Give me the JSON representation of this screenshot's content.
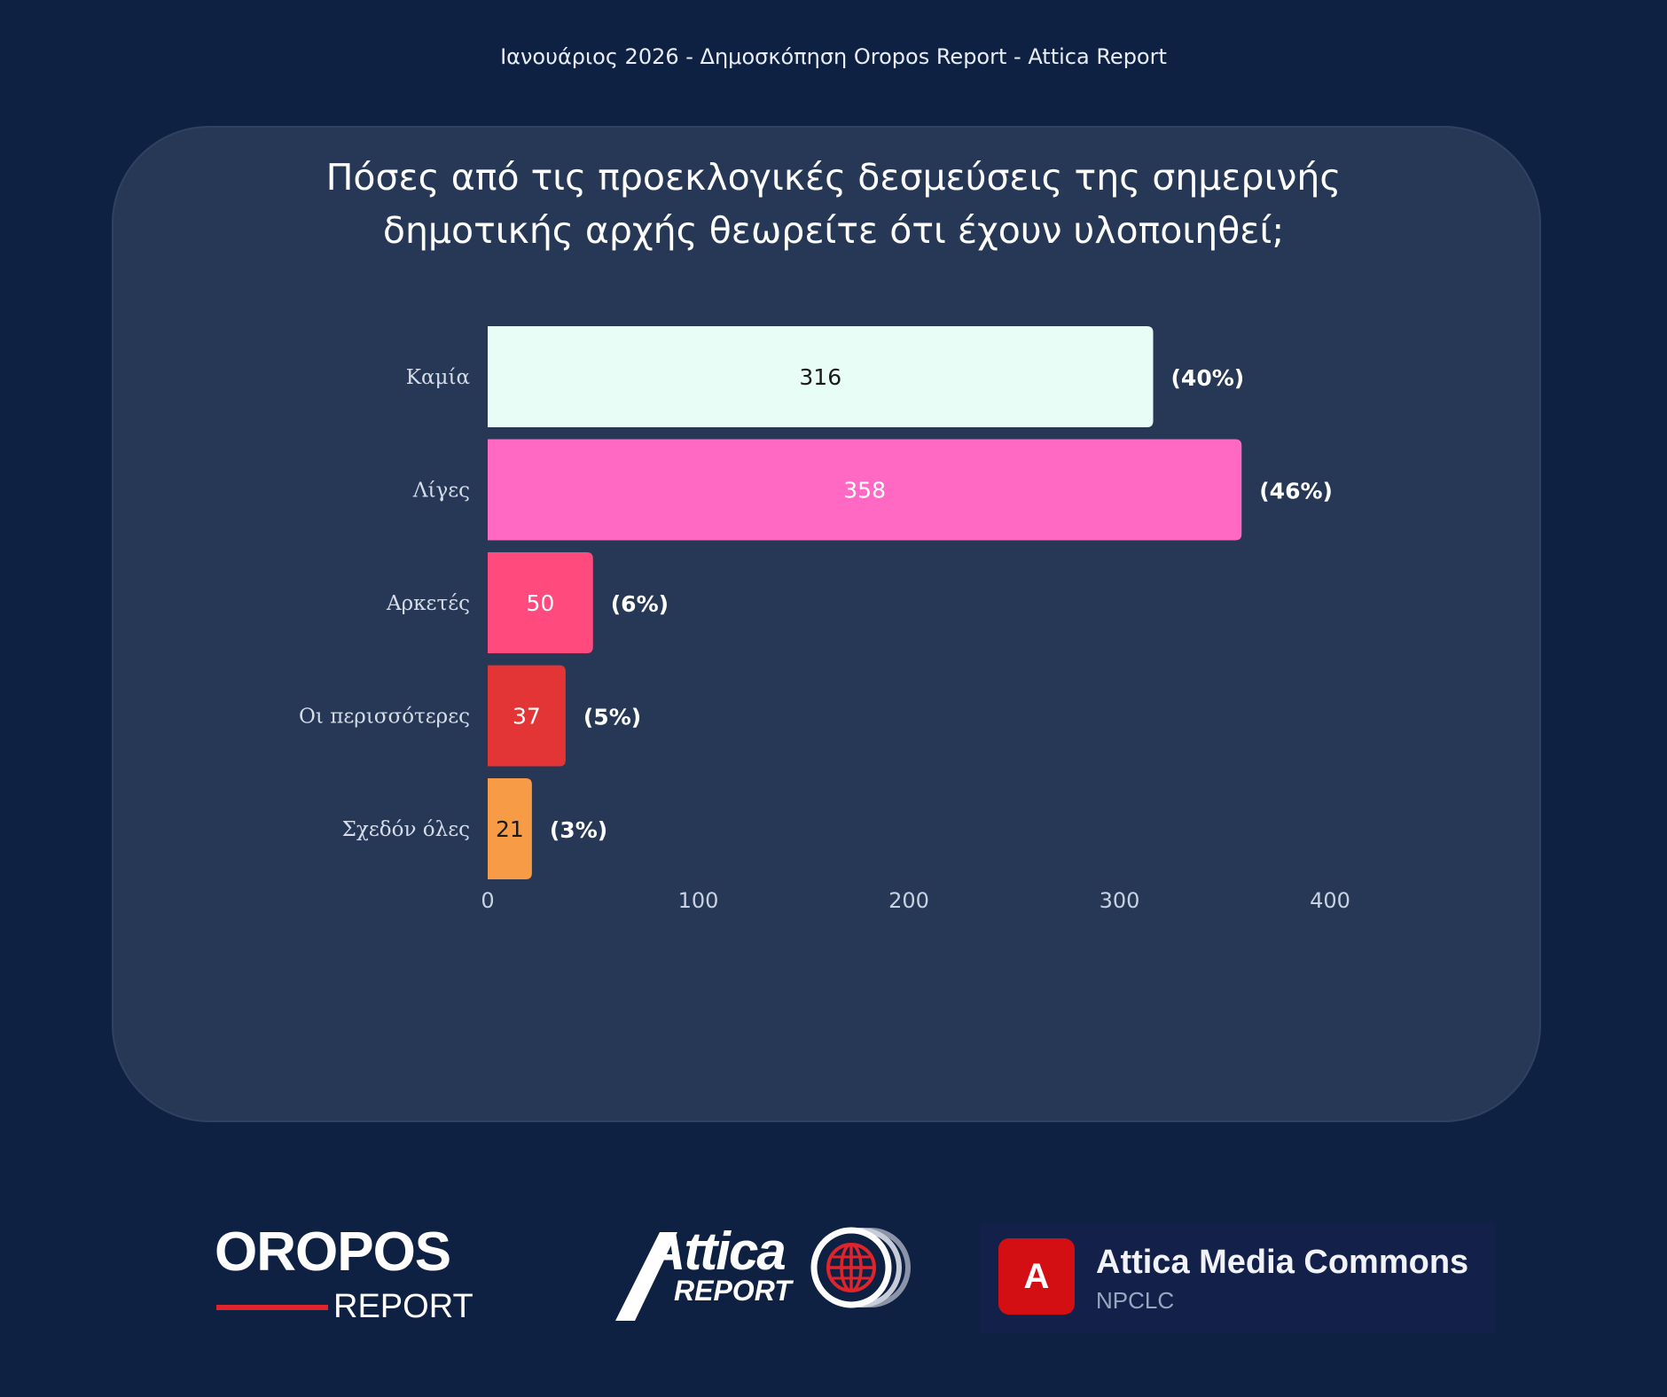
{
  "header": {
    "title": "Ιανουάριος 2026 - Δημοσκόπηση Oropos Report - Attica Report"
  },
  "question": {
    "line1": "Πόσες από τις προεκλογικές δεσμεύσεις της σημερινής",
    "line2": "δημοτικής αρχής θεωρείτε ότι έχουν υλοποιηθεί;"
  },
  "chart_data": {
    "type": "bar",
    "orientation": "horizontal",
    "categories": [
      "Καμία",
      "Λίγες",
      "Αρκετές",
      "Οι περισσότερες",
      "Σχεδόν όλες"
    ],
    "values": [
      316,
      358,
      50,
      37,
      21
    ],
    "percent_labels": [
      "(40%)",
      "(46%)",
      "(6%)",
      "(5%)",
      "(3%)"
    ],
    "colors": [
      "#e8fdf5",
      "#ff69c4",
      "#ff4a7d",
      "#e33535",
      "#f79b47"
    ],
    "value_label_colors": [
      "#1a1a1a",
      "#ffffff",
      "#ffffff",
      "#ffffff",
      "#1a1a1a"
    ],
    "x_ticks": [
      0,
      100,
      200,
      300,
      400
    ],
    "xlim": [
      0,
      400
    ],
    "grid": false,
    "legend": "none"
  },
  "logos": {
    "oropos": {
      "top": "OROPOS",
      "bottom": "REPORT"
    },
    "attica": {
      "word": "Attica",
      "report": "REPORT"
    },
    "amc": {
      "badge": "A",
      "title": "Attica Media Commons",
      "subtitle": "NPCLC"
    }
  },
  "colors": {
    "background": "#0e2142",
    "panel": "#263855",
    "accent_red": "#e0242c"
  }
}
